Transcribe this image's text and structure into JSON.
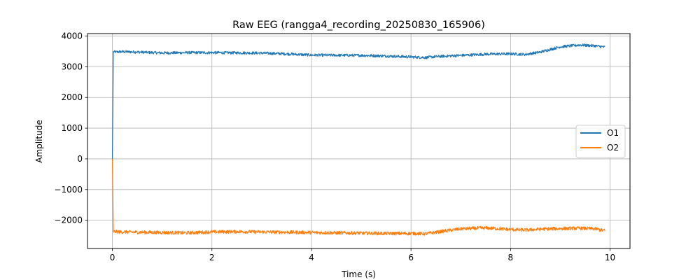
{
  "chart_data": {
    "type": "line",
    "title": "Raw EEG (rangga4_recording_20250830_165906)",
    "xlabel": "Time (s)",
    "ylabel": "Amplitude",
    "xlim": [
      -0.5,
      10.4
    ],
    "ylim": [
      -2920,
      4080
    ],
    "xticks": [
      0,
      2,
      4,
      6,
      8,
      10
    ],
    "yticks": [
      -2000,
      -1000,
      0,
      1000,
      2000,
      3000,
      4000
    ],
    "ytick_labels": [
      "−2000",
      "−1000",
      "0",
      "1000",
      "2000",
      "3000",
      "4000"
    ],
    "grid": true,
    "legend_position": "center-right",
    "x": [
      0,
      0.02,
      0.2,
      0.5,
      1.0,
      1.5,
      2.0,
      2.5,
      3.0,
      3.5,
      4.0,
      4.5,
      5.0,
      5.5,
      6.0,
      6.3,
      6.5,
      7.0,
      7.5,
      8.0,
      8.3,
      8.6,
      9.0,
      9.4,
      9.7,
      9.9
    ],
    "series": [
      {
        "name": "O1",
        "color": "#1f77b4",
        "values": [
          0,
          3480,
          3490,
          3480,
          3450,
          3460,
          3460,
          3455,
          3445,
          3420,
          3380,
          3375,
          3370,
          3350,
          3320,
          3300,
          3330,
          3370,
          3410,
          3420,
          3400,
          3480,
          3650,
          3710,
          3680,
          3640
        ],
        "noise_amplitude": 45
      },
      {
        "name": "O2",
        "color": "#ff7f0e",
        "values": [
          0,
          -2370,
          -2380,
          -2390,
          -2400,
          -2410,
          -2380,
          -2370,
          -2380,
          -2390,
          -2400,
          -2410,
          -2420,
          -2430,
          -2430,
          -2440,
          -2390,
          -2280,
          -2250,
          -2300,
          -2320,
          -2290,
          -2270,
          -2260,
          -2280,
          -2340
        ],
        "noise_amplitude": 55
      }
    ]
  }
}
